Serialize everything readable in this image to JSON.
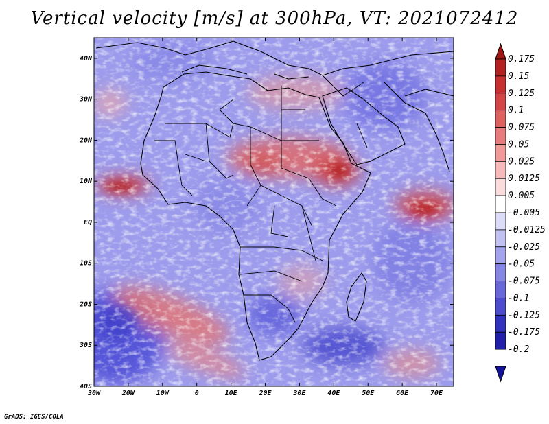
{
  "title": "Vertical velocity [m/s] at 300hPa, VT: 2021072412",
  "credit": "GrADS: IGES/COLA",
  "map": {
    "lon_range": [
      -30,
      75
    ],
    "lat_range": [
      -40,
      45
    ],
    "lon_ticks": [
      "30W",
      "20W",
      "10W",
      "0",
      "10E",
      "20E",
      "30E",
      "40E",
      "50E",
      "60E",
      "70E"
    ],
    "lat_ticks": [
      "40S",
      "30S",
      "20S",
      "10S",
      "EQ",
      "10N",
      "20N",
      "30N",
      "40N"
    ]
  },
  "colorbar": {
    "labels": [
      "0.175",
      "0.15",
      "0.125",
      "0.1",
      "0.075",
      "0.05",
      "0.025",
      "0.0125",
      "0.005",
      "-0.005",
      "-0.0125",
      "-0.025",
      "-0.05",
      "-0.075",
      "-0.1",
      "-0.125",
      "-0.175",
      "-0.2"
    ],
    "colors": [
      "#a01414",
      "#b52121",
      "#c83030",
      "#d64545",
      "#e05f5f",
      "#e87b7b",
      "#f09a9a",
      "#f6baba",
      "#fadcdc",
      "#ffffff",
      "#dcdcf8",
      "#c0c0f2",
      "#a4a4ec",
      "#8686e4",
      "#6868dc",
      "#4c4cd0",
      "#3232c0",
      "#2020aa",
      "#12129a"
    ]
  }
}
